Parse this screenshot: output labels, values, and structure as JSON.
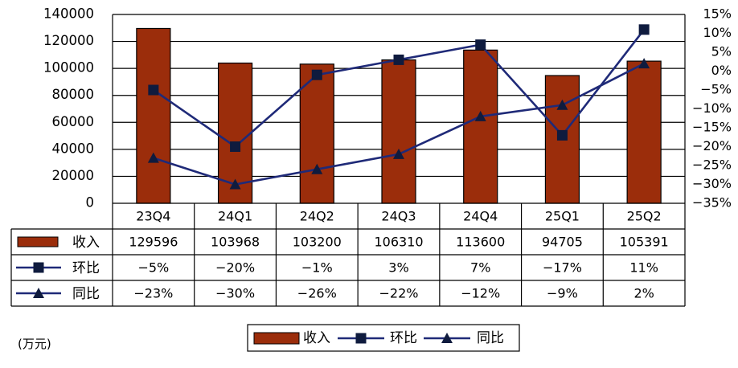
{
  "unit_label": "(万元)",
  "colors": {
    "bar_fill": "#9B2D0B",
    "line": "#1F2A78",
    "marker": "#0F1B3E",
    "axis": "#000000",
    "grid": "#000000"
  },
  "chart_data": {
    "type": "bar",
    "categories": [
      "23Q4",
      "24Q1",
      "24Q2",
      "24Q3",
      "24Q4",
      "25Q1",
      "25Q2"
    ],
    "series": [
      {
        "name": "收入",
        "kind": "bar",
        "axis": "left",
        "values": [
          129596,
          103968,
          103200,
          106310,
          113600,
          94705,
          105391
        ]
      },
      {
        "name": "环比",
        "kind": "line",
        "marker": "square",
        "axis": "right",
        "values": [
          -5,
          -20,
          -1,
          3,
          7,
          -17,
          11
        ]
      },
      {
        "name": "同比",
        "kind": "line",
        "marker": "triangle",
        "axis": "right",
        "values": [
          -23,
          -30,
          -26,
          -22,
          -12,
          -9,
          2
        ]
      }
    ],
    "table_rows": [
      {
        "label": "收入",
        "cells": [
          "129596",
          "103968",
          "103200",
          "106310",
          "113600",
          "94705",
          "105391"
        ]
      },
      {
        "label": "环比",
        "cells": [
          "-5%",
          "-20%",
          "-1%",
          "3%",
          "7%",
          "-17%",
          "11%"
        ]
      },
      {
        "label": "同比",
        "cells": [
          "-23%",
          "-30%",
          "-26%",
          "-22%",
          "-12%",
          "-9%",
          "2%"
        ]
      }
    ],
    "y_left": {
      "min": 0,
      "max": 140000,
      "ticks": [
        "0",
        "20000",
        "40000",
        "60000",
        "80000",
        "100000",
        "120000",
        "140000"
      ]
    },
    "y_right": {
      "min": -35,
      "max": 15,
      "ticks": [
        "15%",
        "10%",
        "5%",
        "0%",
        "-5%",
        "-10%",
        "-15%",
        "-20%",
        "-25%",
        "-30%",
        "-35%"
      ]
    },
    "grid": true,
    "legend_position": "bottom"
  }
}
